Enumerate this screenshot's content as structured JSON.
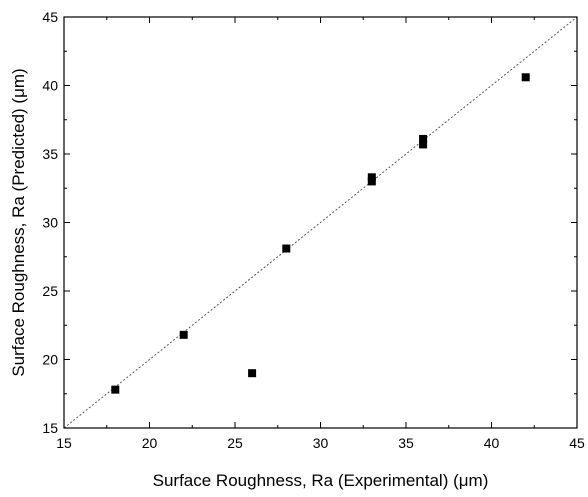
{
  "chart_data": {
    "type": "scatter",
    "xlabel": "Surface Roughness, Ra (Experimental) (μm)",
    "ylabel": "Surface Roughness, Ra (Predicted) (μm)",
    "xlim": [
      15,
      45
    ],
    "ylim": [
      15,
      45
    ],
    "xticks": [
      15,
      20,
      25,
      30,
      35,
      40,
      45
    ],
    "yticks": [
      15,
      20,
      25,
      30,
      35,
      40,
      45
    ],
    "minor_ticks_per_major": 1,
    "grid": false,
    "legend": "none",
    "reference_line": {
      "label": "y = x",
      "style": "dotted"
    },
    "marker_color": "#000000",
    "points": [
      {
        "x": 18,
        "y": 17.8
      },
      {
        "x": 22,
        "y": 21.8
      },
      {
        "x": 26,
        "y": 19.0
      },
      {
        "x": 28,
        "y": 28.1
      },
      {
        "x": 33,
        "y": 33.0
      },
      {
        "x": 33,
        "y": 33.3
      },
      {
        "x": 36,
        "y": 35.7
      },
      {
        "x": 36,
        "y": 36.1
      },
      {
        "x": 42,
        "y": 40.6
      }
    ]
  }
}
